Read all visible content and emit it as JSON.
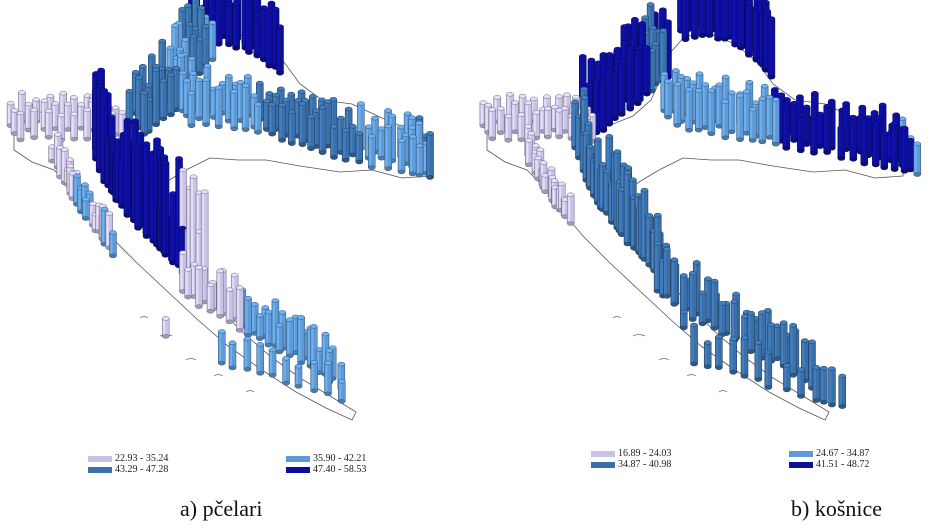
{
  "maps": [
    {
      "id": "a",
      "caption": "a) pčelari",
      "legend": [
        {
          "label": "22.93 - 35.24",
          "color": "#c8c2e6"
        },
        {
          "label": "35.90 - 42.21",
          "color": "#5f9ad6"
        },
        {
          "label": "43.29 - 47.28",
          "color": "#3a6fa8"
        },
        {
          "label": "47.40 - 58.53",
          "color": "#0d0f9a"
        }
      ]
    },
    {
      "id": "b",
      "caption": "b) košnice",
      "legend": [
        {
          "label": "16.89 - 24.03",
          "color": "#c8c2e6"
        },
        {
          "label": "24.67 - 34.87",
          "color": "#5f9ad6"
        },
        {
          "label": "34.87 - 40.98",
          "color": "#3a6fa8"
        },
        {
          "label": "41.51 - 48.72",
          "color": "#0d0f9a"
        }
      ]
    }
  ]
}
